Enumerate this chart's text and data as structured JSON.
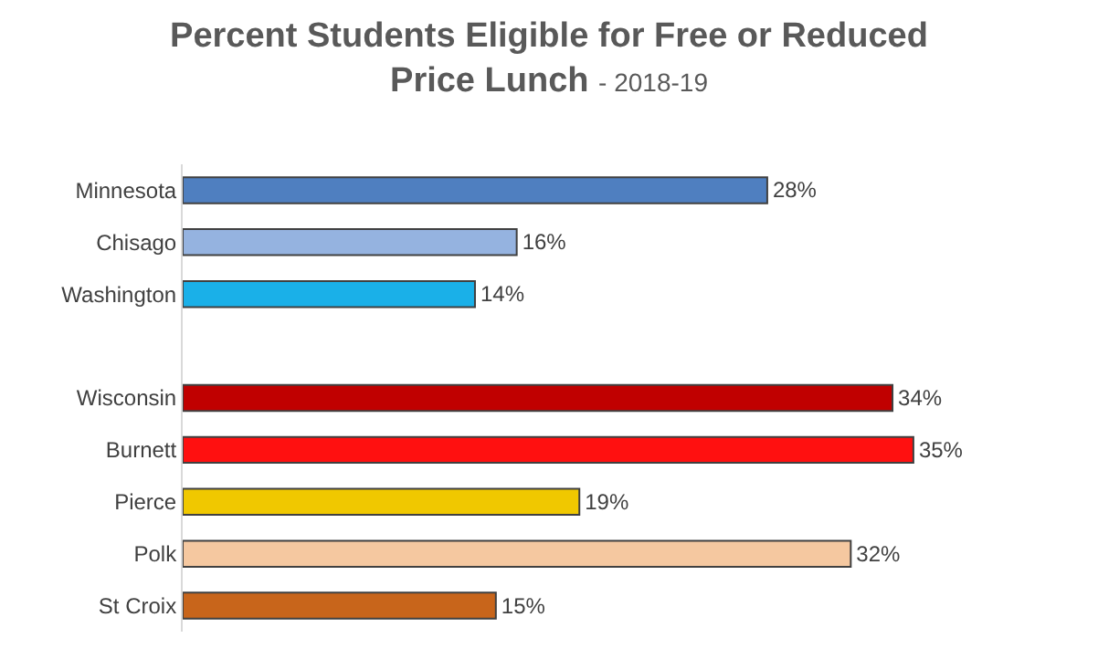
{
  "chart_data": {
    "type": "bar",
    "orientation": "horizontal",
    "title": "Percent Students Eligible for Free or Reduced Price Lunch",
    "subtitle": "- 2018-19",
    "categories": [
      "Minnesota",
      "Chisago",
      "Washington",
      null,
      "Wisconsin",
      "Burnett",
      "Pierce",
      "Polk",
      "St Croix"
    ],
    "values": [
      28,
      16,
      14,
      null,
      34,
      35,
      19,
      32,
      15
    ],
    "colors": [
      "#4f7fc0",
      "#95b3e0",
      "#1ab0e8",
      "#ffffff",
      "#c00000",
      "#ff1010",
      "#f0c800",
      "#f5c8a0",
      "#c8651b"
    ],
    "value_labels": [
      "28%",
      "16%",
      "14%",
      null,
      "34%",
      "35%",
      "19%",
      "32%",
      "15%"
    ],
    "legend": false
  }
}
